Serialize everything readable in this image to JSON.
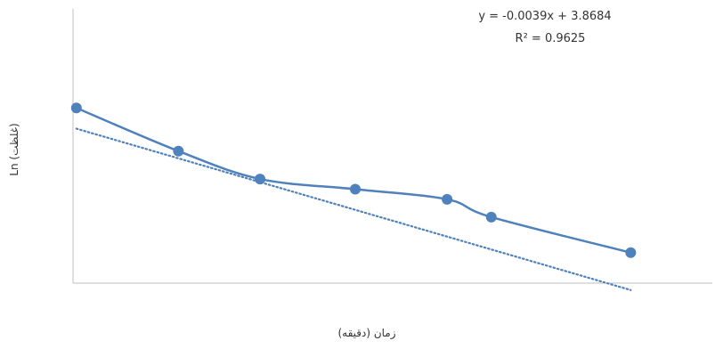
{
  "chart_data": {
    "type": "scatter",
    "title": "",
    "xlabel": "زمان (دقیقه)",
    "ylabel": "Ln (غلظت)",
    "x_ticks_shown": false,
    "y_ticks_shown": false,
    "grid": false,
    "legend": "none",
    "series": [
      {
        "name": "",
        "line": "smooth",
        "marker": "circle",
        "color": "#4f81bd",
        "points": [
          {
            "x": 0,
            "y": 3.95
          },
          {
            "x": 30,
            "y": 3.78
          },
          {
            "x": 54,
            "y": 3.67
          },
          {
            "x": 82,
            "y": 3.63
          },
          {
            "x": 109,
            "y": 3.59
          },
          {
            "x": 122,
            "y": 3.52
          },
          {
            "x": 163,
            "y": 3.38
          }
        ]
      }
    ],
    "trendline": {
      "type": "linear",
      "style": "dotted",
      "color": "#4f81bd",
      "slope": -0.0039,
      "intercept": 3.8684,
      "x_from": 0,
      "x_to": 163
    },
    "annotations": {
      "equation": "y = -0.0039x + 3.8684",
      "r_squared": "R² = 0.9625"
    },
    "xlim": [
      -1,
      187
    ],
    "ylim": [
      3.26,
      4.34
    ]
  }
}
